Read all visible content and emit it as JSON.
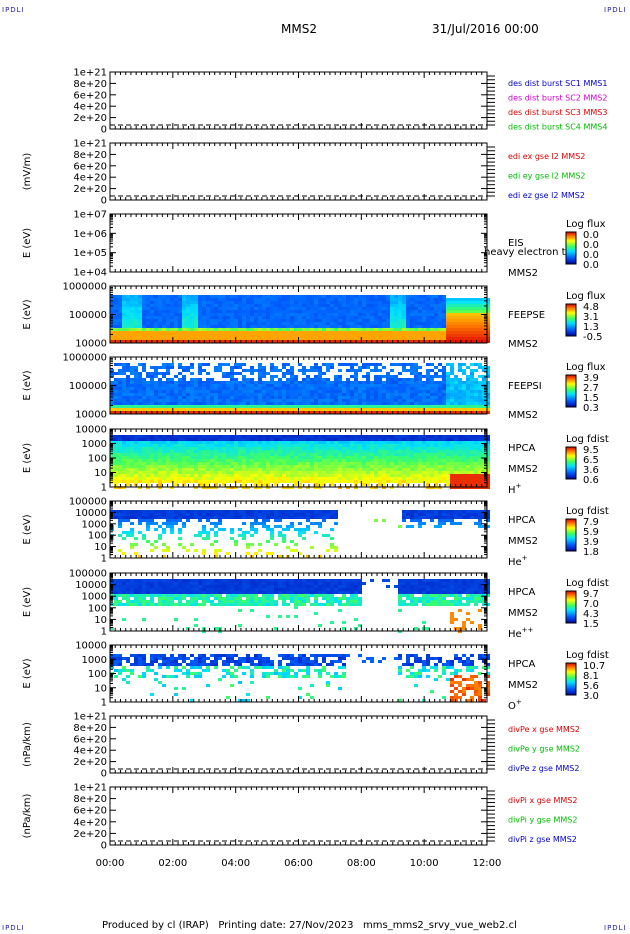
{
  "header": {
    "corner_tl": "IPDLI",
    "corner_tr": "IPDLI",
    "corner_bl": "IPDLI",
    "corner_br": "IPDLI",
    "title": "MMS2",
    "date": "31/Jul/2016 00:00"
  },
  "footer": {
    "text": "Produced by cl (IRAP)   Printing date: 27/Nov/2023   mms_mms2_srvy_vue_web2.cl"
  },
  "chart_data": {
    "type": "stacked-timeseries",
    "time_axis": {
      "ticks": [
        "00:00",
        "02:00",
        "04:00",
        "06:00",
        "08:00",
        "10:00",
        "12:00"
      ],
      "range_hours": [
        0,
        12
      ]
    },
    "panels": [
      {
        "id": "des",
        "type": "line",
        "ylabel": "",
        "yticks": [
          "1e+21",
          "8e+20",
          "6e+20",
          "4e+20",
          "2e+20",
          "0"
        ],
        "ylim": [
          0,
          1e+21
        ],
        "zero_line": "dashed",
        "legend": [
          {
            "text": "des dist burst SC1 MMS1",
            "color": "#0000cc"
          },
          {
            "text": "des dist burst SC2 MMS2",
            "color": "#cc00cc"
          },
          {
            "text": "des dist burst SC3 MMS3",
            "color": "#dd0000"
          },
          {
            "text": "des dist burst SC4 MMS4",
            "color": "#00bb00"
          }
        ]
      },
      {
        "id": "edi",
        "type": "line",
        "ylabel": "(mV/m)",
        "yticks": [
          "1e+21",
          "8e+20",
          "6e+20",
          "4e+20",
          "2e+20",
          "0"
        ],
        "ylim": [
          0,
          1e+21
        ],
        "zero_line": "dashed",
        "legend": [
          {
            "text": "edi ex gse l2 MMS2",
            "color": "#dd0000"
          },
          {
            "text": "edi ey gse l2 MMS2",
            "color": "#00bb00"
          },
          {
            "text": "edi ez gse l2 MMS2",
            "color": "#0000cc"
          }
        ]
      },
      {
        "id": "eis",
        "type": "spectrogram",
        "ylabel": "E (eV)",
        "yticks": [
          "1e+07",
          "1e+06",
          "1e+05",
          "1e+04"
        ],
        "yscale": "log",
        "right_labels": [
          "EIS",
          "MMS2"
        ],
        "overlay_text": "heavy electron to",
        "colorbar": {
          "title": "Log flux",
          "ticks": [
            "0.0",
            "0.0",
            "0.0",
            "0.0"
          ]
        }
      },
      {
        "id": "feepse",
        "type": "spectrogram",
        "ylabel": "E (eV)",
        "yticks": [
          "1000000",
          "100000",
          "10000"
        ],
        "yscale": "log",
        "right_labels": [
          "FEEPSE",
          "MMS2"
        ],
        "colorbar": {
          "title": "Log flux",
          "ticks": [
            "4.8",
            "3.1",
            "1.3",
            "-0.5"
          ]
        }
      },
      {
        "id": "feepsi",
        "type": "spectrogram",
        "ylabel": "E (eV)",
        "yticks": [
          "1000000",
          "100000",
          "10000"
        ],
        "yscale": "log",
        "right_labels": [
          "FEEPSI",
          "MMS2"
        ],
        "colorbar": {
          "title": "Log flux",
          "ticks": [
            "3.9",
            "2.7",
            "1.5",
            "0.3"
          ]
        }
      },
      {
        "id": "hpca_h",
        "type": "spectrogram",
        "ylabel": "E (eV)",
        "yticks": [
          "10000",
          "1000",
          "100",
          "10",
          "1"
        ],
        "yscale": "log",
        "right_labels": [
          "HPCA",
          "MMS2",
          "H"
        ],
        "species_sup": "+",
        "colorbar": {
          "title": "Log fdist",
          "ticks": [
            "9.5",
            "6.5",
            "3.6",
            "0.6"
          ]
        }
      },
      {
        "id": "hpca_he",
        "type": "spectrogram",
        "ylabel": "E (eV)",
        "yticks": [
          "100000",
          "10000",
          "1000",
          "100",
          "10",
          "1"
        ],
        "yscale": "log",
        "right_labels": [
          "HPCA",
          "MMS2",
          "He"
        ],
        "species_sup": "+",
        "colorbar": {
          "title": "Log fdist",
          "ticks": [
            "7.9",
            "5.9",
            "3.9",
            "1.8"
          ]
        }
      },
      {
        "id": "hpca_hepp",
        "type": "spectrogram",
        "ylabel": "E (eV)",
        "yticks": [
          "100000",
          "10000",
          "1000",
          "100",
          "10",
          "1"
        ],
        "yscale": "log",
        "right_labels": [
          "HPCA",
          "MMS2",
          "He"
        ],
        "species_sup": "++",
        "colorbar": {
          "title": "Log fdist",
          "ticks": [
            "9.7",
            "7.0",
            "4.3",
            "1.5"
          ]
        }
      },
      {
        "id": "hpca_o",
        "type": "spectrogram",
        "ylabel": "E (eV)",
        "yticks": [
          "10000",
          "1000",
          "100",
          "10",
          "1"
        ],
        "yscale": "log",
        "right_labels": [
          "HPCA",
          "MMS2",
          "O"
        ],
        "species_sup": "+",
        "colorbar": {
          "title": "Log fdist",
          "ticks": [
            "10.7",
            "8.1",
            "5.6",
            "3.0"
          ]
        }
      },
      {
        "id": "divpe",
        "type": "line",
        "ylabel": "(nPa/km)",
        "yticks": [
          "1e+21",
          "8e+20",
          "6e+20",
          "4e+20",
          "2e+20",
          "0"
        ],
        "ylim": [
          0,
          1e+21
        ],
        "zero_line": "dashed",
        "legend": [
          {
            "text": "divPe x gse MMS2",
            "color": "#dd0000"
          },
          {
            "text": "divPe y gse MMS2",
            "color": "#00bb00"
          },
          {
            "text": "divPe z gse MMS2",
            "color": "#0000cc"
          }
        ]
      },
      {
        "id": "divpi",
        "type": "line",
        "ylabel": "(nPa/km)",
        "yticks": [
          "1e+21",
          "8e+20",
          "6e+20",
          "4e+20",
          "2e+20",
          "0"
        ],
        "ylim": [
          0,
          1e+21
        ],
        "zero_line": "dashed",
        "legend": [
          {
            "text": "divPi x gse MMS2",
            "color": "#dd0000"
          },
          {
            "text": "divPi y gse MMS2",
            "color": "#00bb00"
          },
          {
            "text": "divPi z gse MMS2",
            "color": "#0000cc"
          }
        ]
      }
    ]
  }
}
